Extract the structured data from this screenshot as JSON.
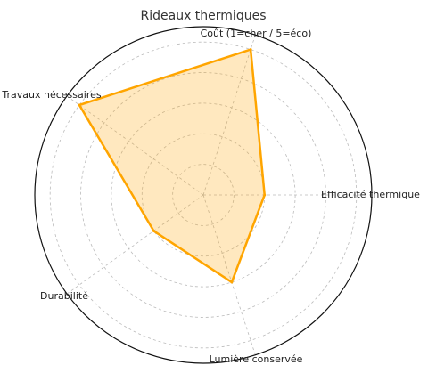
{
  "chart_data": {
    "type": "radar",
    "title": "Rideaux thermiques",
    "categories": [
      "Efficacité thermique",
      "Coût (1=cher / 5=éco)",
      "Travaux nécessaires",
      "Durabilité",
      "Lumière conservée"
    ],
    "values": [
      2,
      5,
      5,
      2,
      3
    ],
    "color": "#ffa500",
    "ylim": [
      0,
      5.5
    ],
    "yticks": [
      1,
      2,
      3,
      4,
      5
    ],
    "grid": true
  }
}
